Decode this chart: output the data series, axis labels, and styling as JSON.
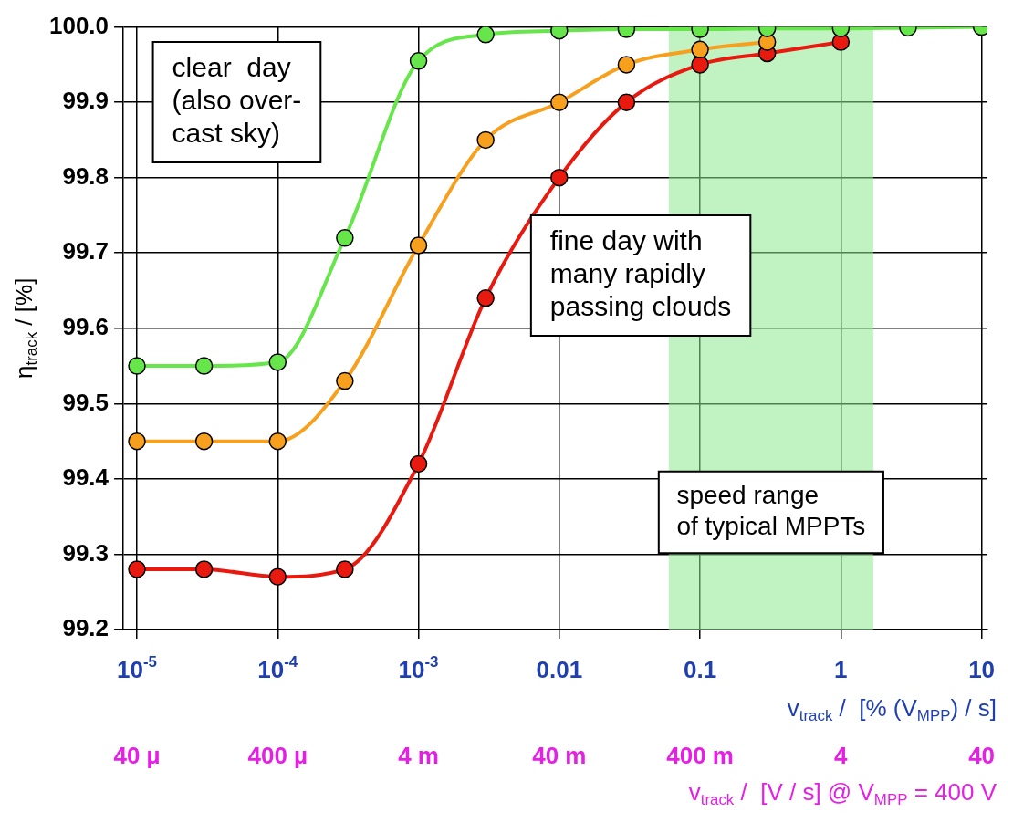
{
  "chart_data": {
    "type": "line",
    "log": "x",
    "grid": true,
    "marker": "circle",
    "line_style": "solid",
    "ylabel": "η$_{track}$ / [%]",
    "xlabel": "v$_{track}$ /  [% (V$_{MPP}$) / s]",
    "x": [
      1e-05,
      3e-05,
      0.0001,
      0.0003,
      0.001,
      0.003,
      0.01,
      0.03,
      0.1,
      0.3,
      1,
      3,
      10
    ],
    "xlim": [
      8e-06,
      11
    ],
    "xticks": [
      {
        "value": 1e-05,
        "label": "10$^{-5}$"
      },
      {
        "value": 0.0001,
        "label": "10$^{-4}$"
      },
      {
        "value": 0.001,
        "label": "10$^{-3}$"
      },
      0.01,
      0.1,
      1,
      10
    ],
    "ylim": [
      99.2,
      100
    ],
    "yticks": [
      99.2,
      99.3,
      99.4,
      99.5,
      99.6,
      99.7,
      99.8,
      99.9,
      {
        "value": 100,
        "label": "100.0"
      }
    ],
    "series": [
      {
        "color": "#66e64a",
        "values": [
          99.55,
          99.55,
          99.555,
          99.72,
          99.955,
          99.99,
          99.995,
          99.997,
          99.997,
          99.998,
          99.998,
          99.999,
          100
        ]
      },
      {
        "color": "#f7a01e",
        "values": [
          99.45,
          99.45,
          99.45,
          99.53,
          99.71,
          99.85,
          99.9,
          99.95,
          99.97,
          99.98,
          null,
          null,
          null
        ]
      },
      {
        "color": "#e8190f",
        "values": [
          99.28,
          99.28,
          99.27,
          99.28,
          99.42,
          99.64,
          99.8,
          99.9,
          99.95,
          99.965,
          99.98,
          null,
          null
        ]
      }
    ],
    "bands": [
      {
        "axis": "x",
        "from": 0.06,
        "to": 1.7,
        "label": "speed range\nof typical MPPTs",
        "color": "#8ee88e"
      }
    ],
    "annotations": [
      "clear  day\n(also over-\ncast sky)",
      "fine day with\nmany rapidly\npassing clouds",
      "40 µ",
      "400 µ",
      "4 m",
      "40 m",
      "400 m",
      "4",
      "40",
      "v$_{track}$ /  [V / s] @ V$_{MPP}$ = 400 V"
    ]
  }
}
